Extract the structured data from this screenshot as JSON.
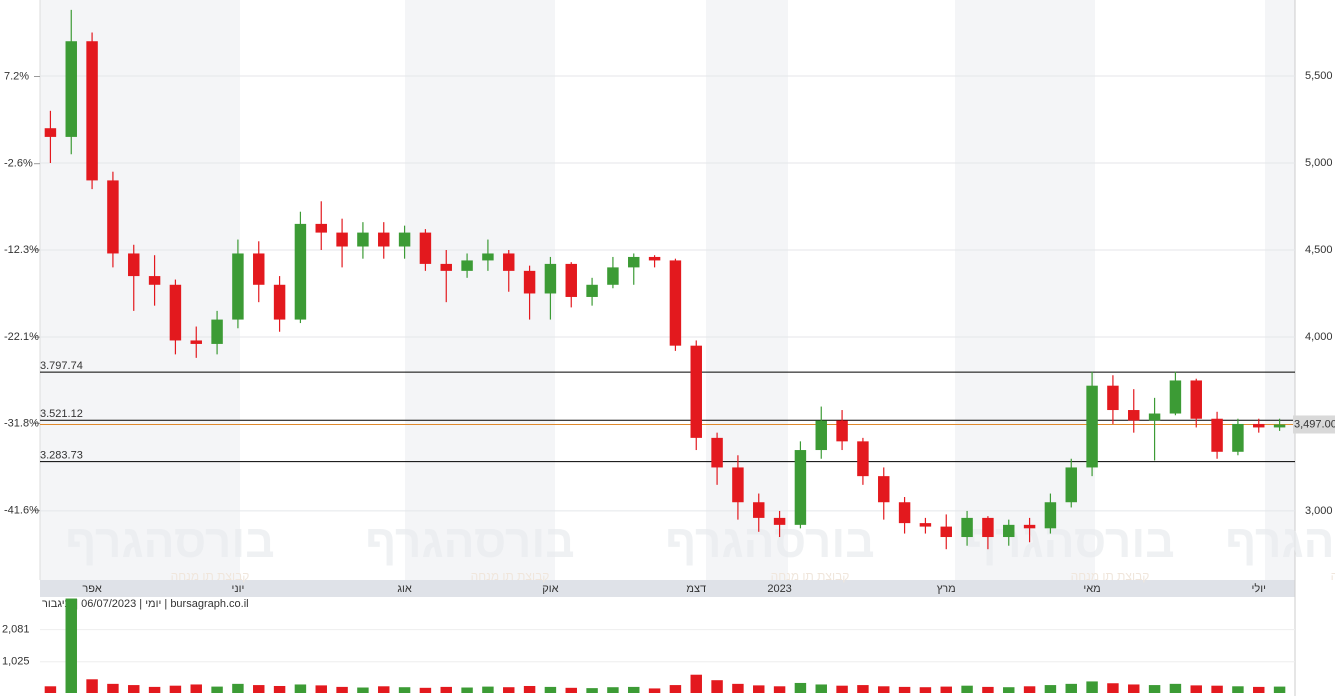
{
  "chart_data": {
    "type": "candlestick",
    "categories": [
      null,
      null,
      "אפר",
      null,
      null,
      null,
      null,
      null,
      null,
      "יוני",
      null,
      null,
      null,
      null,
      null,
      null,
      null,
      "אוג",
      null,
      null,
      null,
      null,
      null,
      null,
      "אוק",
      null,
      null,
      null,
      null,
      null,
      null,
      "דצמ",
      null,
      null,
      null,
      "2023",
      null,
      null,
      null,
      null,
      null,
      null,
      null,
      "מרץ",
      null,
      null,
      null,
      null,
      null,
      null,
      "מאי",
      null,
      null,
      null,
      null,
      null,
      null,
      null,
      "יולי",
      null
    ],
    "open": [
      5200,
      5150,
      5700,
      4900,
      4480,
      4350,
      4300,
      3980,
      3960,
      4100,
      4480,
      4300,
      4100,
      4650,
      4600,
      4520,
      4600,
      4520,
      4600,
      4420,
      4380,
      4440,
      4480,
      4380,
      4250,
      4420,
      4230,
      4300,
      4400,
      4460,
      4440,
      3950,
      3420,
      3250,
      3050,
      2960,
      2920,
      3350,
      3520,
      3400,
      3200,
      3050,
      2930,
      2910,
      2850,
      2960,
      2850,
      2920,
      2900,
      3050,
      3250,
      3720,
      3580,
      3520,
      3560,
      3750,
      3530,
      3340,
      3500,
      3480
    ],
    "high": [
      5300,
      5880,
      5750,
      4950,
      4530,
      4470,
      4330,
      4060,
      4150,
      4560,
      4550,
      4350,
      4720,
      4780,
      4680,
      4660,
      4660,
      4640,
      4620,
      4500,
      4480,
      4560,
      4500,
      4410,
      4460,
      4430,
      4340,
      4460,
      4480,
      4470,
      4450,
      3980,
      3450,
      3320,
      3100,
      3000,
      3400,
      3600,
      3580,
      3420,
      3250,
      3080,
      2960,
      2980,
      3000,
      2970,
      2950,
      2960,
      3100,
      3300,
      3800,
      3780,
      3700,
      3650,
      3800,
      3760,
      3570,
      3530,
      3530,
      3530
    ],
    "low": [
      5000,
      5050,
      4850,
      4400,
      4150,
      4180,
      3900,
      3880,
      3900,
      4050,
      4200,
      4030,
      4080,
      4500,
      4400,
      4450,
      4450,
      4450,
      4380,
      4200,
      4340,
      4380,
      4260,
      4100,
      4100,
      4170,
      4180,
      4280,
      4300,
      4400,
      3920,
      3350,
      3150,
      2950,
      2880,
      2850,
      2900,
      3300,
      3350,
      3150,
      2950,
      2870,
      2870,
      2780,
      2800,
      2780,
      2800,
      2820,
      2870,
      3020,
      3200,
      3500,
      3450,
      3290,
      3550,
      3480,
      3300,
      3320,
      3450,
      3460
    ],
    "close": [
      5150,
      5700,
      4900,
      4480,
      4350,
      4300,
      3980,
      3960,
      4100,
      4480,
      4300,
      4100,
      4650,
      4600,
      4520,
      4600,
      4520,
      4600,
      4420,
      4380,
      4440,
      4480,
      4380,
      4250,
      4420,
      4230,
      4300,
      4400,
      4460,
      4440,
      3950,
      3420,
      3250,
      3050,
      2960,
      2920,
      3350,
      3520,
      3400,
      3200,
      3050,
      2930,
      2910,
      2850,
      2960,
      2850,
      2920,
      2900,
      3050,
      3250,
      3720,
      3580,
      3520,
      3560,
      3750,
      3530,
      3340,
      3500,
      3480,
      3497
    ],
    "up_color": "#3c9b35",
    "down_color": "#e3191e",
    "ylim": [
      2603,
      5937
    ],
    "yticks": [
      {
        "value": 5500,
        "label": "5,500"
      },
      {
        "value": 5000,
        "label": "5,000"
      },
      {
        "value": 4500,
        "label": "4,500"
      },
      {
        "value": 4000,
        "label": "4,000"
      },
      {
        "value": 3000,
        "label": "3,000"
      }
    ],
    "y2lim": [
      -49.4,
      15.8
    ],
    "y2ticks": [
      {
        "value": 7.2,
        "label": "7.2%"
      },
      {
        "value": -2.6,
        "label": "-2.6%"
      },
      {
        "value": -12.3,
        "label": "-12.3%"
      },
      {
        "value": -22.1,
        "label": "-22.1%"
      },
      {
        "value": -31.8,
        "label": "-31.8%"
      },
      {
        "value": -41.6,
        "label": "-41.6%"
      }
    ],
    "levels": [
      {
        "value": 3797.74,
        "label": "3.797.74"
      },
      {
        "value": 3521.12,
        "label": "3.521.12"
      },
      {
        "value": 3283.73,
        "label": "3.283.73"
      }
    ],
    "last": {
      "value": 3497,
      "label": "3,497.00"
    },
    "volume": {
      "values": [
        220,
        3100,
        450,
        300,
        260,
        200,
        240,
        280,
        210,
        300,
        260,
        230,
        280,
        250,
        200,
        180,
        220,
        190,
        170,
        200,
        180,
        210,
        190,
        230,
        200,
        170,
        160,
        190,
        200,
        150,
        260,
        600,
        420,
        300,
        250,
        220,
        330,
        280,
        240,
        260,
        220,
        200,
        190,
        210,
        240,
        200,
        190,
        220,
        260,
        300,
        380,
        320,
        280,
        260,
        300,
        250,
        240,
        220,
        200,
        210
      ],
      "ylim": [
        0,
        3150
      ],
      "yticks": [
        {
          "value": 2081,
          "label": "2,081"
        },
        {
          "value": 1025,
          "label": "1,025"
        }
      ]
    },
    "source": "יומי | 06/07/2023 | תיגבור | bursagraph.co.il",
    "watermark": "בורסהגרף",
    "watermark_sub": "קבוצת תו מנחה"
  }
}
